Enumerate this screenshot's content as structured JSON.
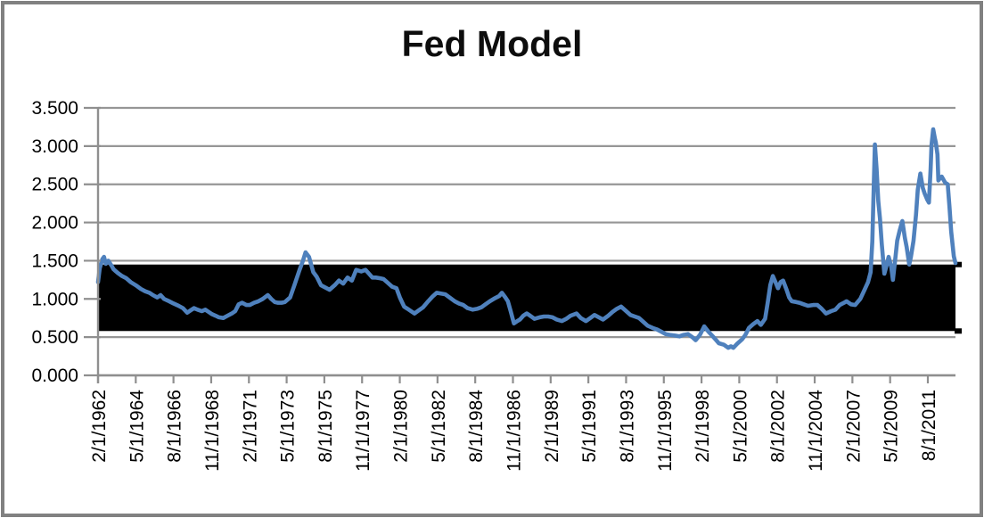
{
  "title": "Fed Model",
  "colors": {
    "line": "#4F81BD",
    "band": "#000000",
    "grid": "#969696",
    "axis": "#8f8f8f",
    "frame_border": "#818181",
    "text": "#000000",
    "title_text": "#0d0d0d",
    "background": "#ffffff"
  },
  "chart_data": {
    "type": "line",
    "title": "Fed Model",
    "xlabel": "",
    "ylabel": "",
    "ylim": [
      0,
      3.5
    ],
    "grid": true,
    "legend": "none",
    "y_tick_labels": [
      "3.500",
      "3.000",
      "2.500",
      "2.000",
      "1.500",
      "1.000",
      "0.500",
      "0.000"
    ],
    "x_tick_labels": [
      "2/1/1962",
      "5/1/1964",
      "8/1/1966",
      "11/1/1968",
      "2/1/1971",
      "5/1/1973",
      "8/1/1975",
      "11/1/1977",
      "2/1/1980",
      "5/1/1982",
      "8/1/1984",
      "11/1/1986",
      "2/1/1989",
      "5/1/1991",
      "8/1/1993",
      "11/1/1995",
      "2/1/1998",
      "5/1/2000",
      "8/1/2002",
      "11/1/2004",
      "2/1/2007",
      "5/1/2009",
      "8/1/2011"
    ],
    "band": {
      "low": 0.58,
      "high": 1.45,
      "color": "#000000"
    },
    "series": [
      {
        "name": "Fed Model",
        "color": "#4F81BD",
        "points": [
          [
            0.0,
            1.22
          ],
          [
            0.002,
            1.4
          ],
          [
            0.005,
            1.52
          ],
          [
            0.007,
            1.55
          ],
          [
            0.009,
            1.46
          ],
          [
            0.012,
            1.5
          ],
          [
            0.016,
            1.43
          ],
          [
            0.018,
            1.39
          ],
          [
            0.023,
            1.34
          ],
          [
            0.028,
            1.3
          ],
          [
            0.033,
            1.27
          ],
          [
            0.038,
            1.22
          ],
          [
            0.044,
            1.18
          ],
          [
            0.05,
            1.13
          ],
          [
            0.055,
            1.1
          ],
          [
            0.06,
            1.08
          ],
          [
            0.064,
            1.05
          ],
          [
            0.069,
            1.02
          ],
          [
            0.073,
            1.05
          ],
          [
            0.077,
            1.0
          ],
          [
            0.083,
            0.97
          ],
          [
            0.088,
            0.94
          ],
          [
            0.094,
            0.91
          ],
          [
            0.099,
            0.88
          ],
          [
            0.104,
            0.82
          ],
          [
            0.108,
            0.85
          ],
          [
            0.112,
            0.88
          ],
          [
            0.116,
            0.86
          ],
          [
            0.121,
            0.84
          ],
          [
            0.125,
            0.86
          ],
          [
            0.129,
            0.83
          ],
          [
            0.133,
            0.8
          ],
          [
            0.137,
            0.78
          ],
          [
            0.141,
            0.76
          ],
          [
            0.146,
            0.75
          ],
          [
            0.151,
            0.78
          ],
          [
            0.156,
            0.81
          ],
          [
            0.16,
            0.84
          ],
          [
            0.164,
            0.93
          ],
          [
            0.168,
            0.95
          ],
          [
            0.173,
            0.92
          ],
          [
            0.177,
            0.92
          ],
          [
            0.182,
            0.95
          ],
          [
            0.187,
            0.97
          ],
          [
            0.192,
            1.0
          ],
          [
            0.198,
            1.05
          ],
          [
            0.202,
            1.0
          ],
          [
            0.206,
            0.96
          ],
          [
            0.21,
            0.95
          ],
          [
            0.214,
            0.95
          ],
          [
            0.218,
            0.96
          ],
          [
            0.224,
            1.02
          ],
          [
            0.229,
            1.18
          ],
          [
            0.235,
            1.38
          ],
          [
            0.239,
            1.5
          ],
          [
            0.242,
            1.61
          ],
          [
            0.246,
            1.55
          ],
          [
            0.251,
            1.35
          ],
          [
            0.255,
            1.29
          ],
          [
            0.26,
            1.18
          ],
          [
            0.265,
            1.15
          ],
          [
            0.27,
            1.12
          ],
          [
            0.276,
            1.18
          ],
          [
            0.281,
            1.24
          ],
          [
            0.286,
            1.2
          ],
          [
            0.291,
            1.28
          ],
          [
            0.296,
            1.24
          ],
          [
            0.301,
            1.38
          ],
          [
            0.307,
            1.36
          ],
          [
            0.312,
            1.38
          ],
          [
            0.316,
            1.33
          ],
          [
            0.32,
            1.28
          ],
          [
            0.324,
            1.28
          ],
          [
            0.329,
            1.27
          ],
          [
            0.333,
            1.26
          ],
          [
            0.338,
            1.21
          ],
          [
            0.343,
            1.16
          ],
          [
            0.348,
            1.14
          ],
          [
            0.352,
            1.02
          ],
          [
            0.357,
            0.9
          ],
          [
            0.361,
            0.87
          ],
          [
            0.365,
            0.84
          ],
          [
            0.369,
            0.81
          ],
          [
            0.374,
            0.85
          ],
          [
            0.379,
            0.89
          ],
          [
            0.385,
            0.97
          ],
          [
            0.39,
            1.03
          ],
          [
            0.395,
            1.08
          ],
          [
            0.4,
            1.07
          ],
          [
            0.405,
            1.06
          ],
          [
            0.411,
            1.01
          ],
          [
            0.416,
            0.97
          ],
          [
            0.421,
            0.94
          ],
          [
            0.426,
            0.92
          ],
          [
            0.431,
            0.88
          ],
          [
            0.437,
            0.86
          ],
          [
            0.442,
            0.87
          ],
          [
            0.447,
            0.89
          ],
          [
            0.452,
            0.93
          ],
          [
            0.457,
            0.97
          ],
          [
            0.463,
            1.01
          ],
          [
            0.468,
            1.04
          ],
          [
            0.471,
            1.08
          ],
          [
            0.475,
            1.02
          ],
          [
            0.478,
            0.97
          ],
          [
            0.481,
            0.85
          ],
          [
            0.485,
            0.68
          ],
          [
            0.489,
            0.71
          ],
          [
            0.492,
            0.73
          ],
          [
            0.496,
            0.78
          ],
          [
            0.5,
            0.81
          ],
          [
            0.504,
            0.78
          ],
          [
            0.509,
            0.74
          ],
          [
            0.515,
            0.76
          ],
          [
            0.52,
            0.77
          ],
          [
            0.525,
            0.77
          ],
          [
            0.53,
            0.76
          ],
          [
            0.535,
            0.73
          ],
          [
            0.541,
            0.71
          ],
          [
            0.546,
            0.74
          ],
          [
            0.551,
            0.78
          ],
          [
            0.558,
            0.81
          ],
          [
            0.563,
            0.75
          ],
          [
            0.569,
            0.71
          ],
          [
            0.574,
            0.75
          ],
          [
            0.579,
            0.79
          ],
          [
            0.584,
            0.76
          ],
          [
            0.589,
            0.73
          ],
          [
            0.595,
            0.78
          ],
          [
            0.6,
            0.83
          ],
          [
            0.605,
            0.87
          ],
          [
            0.61,
            0.9
          ],
          [
            0.615,
            0.85
          ],
          [
            0.621,
            0.79
          ],
          [
            0.626,
            0.77
          ],
          [
            0.631,
            0.75
          ],
          [
            0.636,
            0.7
          ],
          [
            0.641,
            0.65
          ],
          [
            0.647,
            0.62
          ],
          [
            0.652,
            0.6
          ],
          [
            0.657,
            0.57
          ],
          [
            0.662,
            0.54
          ],
          [
            0.667,
            0.53
          ],
          [
            0.673,
            0.52
          ],
          [
            0.678,
            0.51
          ],
          [
            0.683,
            0.53
          ],
          [
            0.688,
            0.54
          ],
          [
            0.693,
            0.5
          ],
          [
            0.697,
            0.46
          ],
          [
            0.702,
            0.53
          ],
          [
            0.707,
            0.64
          ],
          [
            0.712,
            0.57
          ],
          [
            0.717,
            0.51
          ],
          [
            0.721,
            0.46
          ],
          [
            0.724,
            0.42
          ],
          [
            0.73,
            0.4
          ],
          [
            0.735,
            0.36
          ],
          [
            0.738,
            0.38
          ],
          [
            0.741,
            0.36
          ],
          [
            0.745,
            0.41
          ],
          [
            0.751,
            0.47
          ],
          [
            0.755,
            0.53
          ],
          [
            0.759,
            0.62
          ],
          [
            0.764,
            0.67
          ],
          [
            0.769,
            0.71
          ],
          [
            0.773,
            0.66
          ],
          [
            0.778,
            0.74
          ],
          [
            0.781,
            0.95
          ],
          [
            0.784,
            1.18
          ],
          [
            0.787,
            1.3
          ],
          [
            0.79,
            1.22
          ],
          [
            0.793,
            1.14
          ],
          [
            0.796,
            1.22
          ],
          [
            0.799,
            1.24
          ],
          [
            0.803,
            1.12
          ],
          [
            0.806,
            1.02
          ],
          [
            0.809,
            0.97
          ],
          [
            0.814,
            0.96
          ],
          [
            0.818,
            0.95
          ],
          [
            0.823,
            0.93
          ],
          [
            0.828,
            0.91
          ],
          [
            0.834,
            0.92
          ],
          [
            0.839,
            0.92
          ],
          [
            0.844,
            0.87
          ],
          [
            0.849,
            0.81
          ],
          [
            0.855,
            0.84
          ],
          [
            0.86,
            0.86
          ],
          [
            0.865,
            0.92
          ],
          [
            0.87,
            0.95
          ],
          [
            0.873,
            0.97
          ],
          [
            0.878,
            0.93
          ],
          [
            0.883,
            0.92
          ],
          [
            0.889,
            1.0
          ],
          [
            0.894,
            1.12
          ],
          [
            0.898,
            1.22
          ],
          [
            0.901,
            1.35
          ],
          [
            0.903,
            1.75
          ],
          [
            0.905,
            2.6
          ],
          [
            0.906,
            3.02
          ],
          [
            0.908,
            2.7
          ],
          [
            0.91,
            2.28
          ],
          [
            0.912,
            2.05
          ],
          [
            0.914,
            1.72
          ],
          [
            0.917,
            1.33
          ],
          [
            0.92,
            1.45
          ],
          [
            0.922,
            1.55
          ],
          [
            0.925,
            1.42
          ],
          [
            0.927,
            1.25
          ],
          [
            0.93,
            1.55
          ],
          [
            0.932,
            1.76
          ],
          [
            0.935,
            1.9
          ],
          [
            0.938,
            2.02
          ],
          [
            0.941,
            1.8
          ],
          [
            0.943,
            1.68
          ],
          [
            0.946,
            1.45
          ],
          [
            0.948,
            1.55
          ],
          [
            0.951,
            1.76
          ],
          [
            0.954,
            2.1
          ],
          [
            0.956,
            2.43
          ],
          [
            0.959,
            2.64
          ],
          [
            0.962,
            2.45
          ],
          [
            0.964,
            2.38
          ],
          [
            0.967,
            2.3
          ],
          [
            0.969,
            2.26
          ],
          [
            0.971,
            2.7
          ],
          [
            0.972,
            3.01
          ],
          [
            0.974,
            3.22
          ],
          [
            0.976,
            3.1
          ],
          [
            0.977,
            3.05
          ],
          [
            0.979,
            2.89
          ],
          [
            0.98,
            2.55
          ],
          [
            0.982,
            2.58
          ],
          [
            0.984,
            2.6
          ],
          [
            0.988,
            2.52
          ],
          [
            0.991,
            2.5
          ],
          [
            0.993,
            2.2
          ],
          [
            0.995,
            1.88
          ],
          [
            0.998,
            1.56
          ],
          [
            1.0,
            1.47
          ]
        ]
      }
    ]
  }
}
